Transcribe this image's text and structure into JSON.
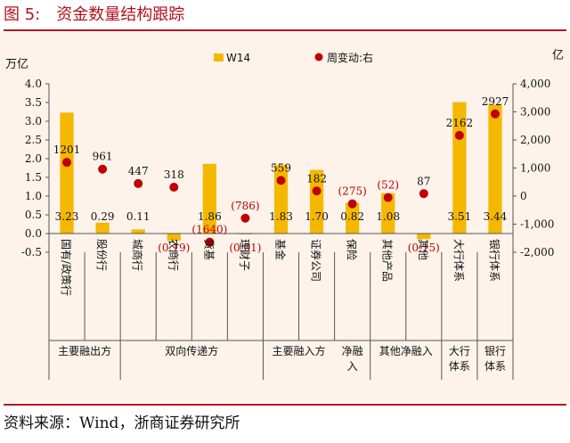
{
  "header": {
    "figure_number": "图 5:",
    "title": "资金数量结构跟踪"
  },
  "footer": {
    "source": "资料来源：Wind，浙商证券研究所"
  },
  "colors": {
    "bar": "#f5b800",
    "dot": "#c00000",
    "accent": "#b3121d",
    "background": "#fdf3ea"
  },
  "chart_data": {
    "type": "bar",
    "categories": [
      "国有/政策行",
      "股份行",
      "城商行",
      "农商行",
      "货基",
      "理财子",
      "基金",
      "证券公司",
      "保险",
      "其他产品",
      "其他",
      "大行体系",
      "银行体系"
    ],
    "series": [
      {
        "name": "W14",
        "type": "bar",
        "axis": "left",
        "values": [
          3.23,
          0.29,
          0.11,
          -0.19,
          1.86,
          -0.01,
          1.83,
          1.7,
          0.82,
          1.08,
          -0.15,
          3.51,
          3.44
        ],
        "labels": [
          "3.23",
          "0.29",
          "0.11",
          "(0.19)",
          "1.86",
          "(0.01)",
          "1.83",
          "1.70",
          "0.82",
          "1.08",
          "(0.15)",
          "3.51",
          "3.44"
        ]
      },
      {
        "name": "周变动:右",
        "type": "scatter",
        "axis": "right",
        "values": [
          1201,
          961,
          447,
          318,
          -1640,
          -786,
          559,
          182,
          -275,
          -52,
          87,
          2162,
          2927
        ],
        "labels": [
          "1201",
          "961",
          "447",
          "318",
          "(1640)",
          "(786)",
          "559",
          "182",
          "(275)",
          "(52)",
          "87",
          "2162",
          "2927"
        ]
      }
    ],
    "groups": [
      {
        "label": "主要融出方",
        "count": 2
      },
      {
        "label": "双向传递方",
        "count": 4
      },
      {
        "label": "主要融入方",
        "count": 2
      },
      {
        "label": "净融入",
        "count": 1
      },
      {
        "label": "其他净融入",
        "count": 2
      },
      {
        "label": "大行体系",
        "count": 1
      },
      {
        "label": "银行体系",
        "count": 1
      }
    ],
    "ylabel_left": "万亿",
    "ylabel_right": "亿",
    "ylim_left": [
      -0.5,
      4.0
    ],
    "yticks_left": [
      "4.0",
      "3.5",
      "3.0",
      "2.5",
      "2.0",
      "1.5",
      "1.0",
      "0.5",
      "0.0",
      "-0.5"
    ],
    "ylim_right": [
      -2000,
      4000
    ],
    "yticks_right": [
      "4,000",
      "3,000",
      "2,000",
      "1,000",
      "0",
      "-1,000",
      "-2,000"
    ],
    "grid": false,
    "legend_position": "top"
  }
}
